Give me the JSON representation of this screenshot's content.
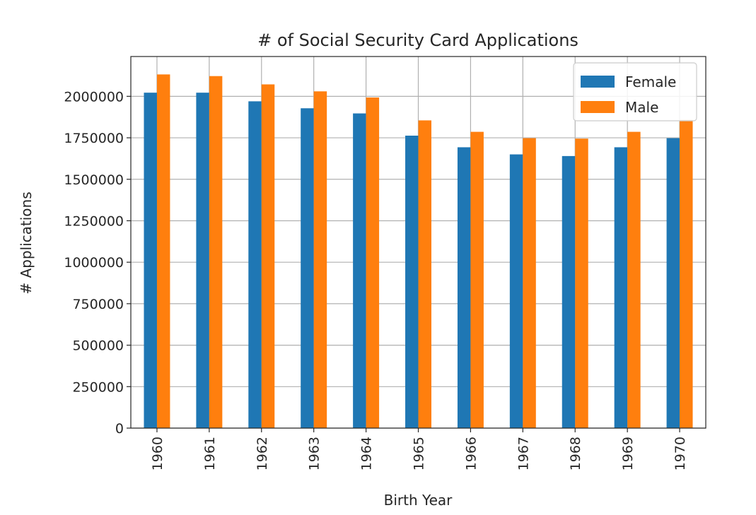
{
  "chart_data": {
    "type": "bar",
    "title": "# of Social Security Card Applications",
    "xlabel": "Birth Year",
    "ylabel": "# Applications",
    "categories": [
      "1960",
      "1961",
      "1962",
      "1963",
      "1964",
      "1965",
      "1966",
      "1967",
      "1968",
      "1969",
      "1970"
    ],
    "series": [
      {
        "name": "Female",
        "color": "#1f77b4",
        "values": [
          2022000,
          2022000,
          1970000,
          1928000,
          1897000,
          1763000,
          1693000,
          1650000,
          1640000,
          1693000,
          1748000
        ]
      },
      {
        "name": "Male",
        "color": "#ff7f0e",
        "values": [
          2132000,
          2122000,
          2072000,
          2030000,
          1993000,
          1855000,
          1786000,
          1748000,
          1745000,
          1786000,
          1858000
        ]
      }
    ],
    "yticks": [
      "0",
      "250000",
      "500000",
      "750000",
      "1000000",
      "1250000",
      "1500000",
      "1750000",
      "2000000"
    ],
    "ylim": [
      0,
      2240000
    ],
    "grid": true,
    "legend_position": "top-right",
    "x_tick_rotation": "vertical"
  }
}
